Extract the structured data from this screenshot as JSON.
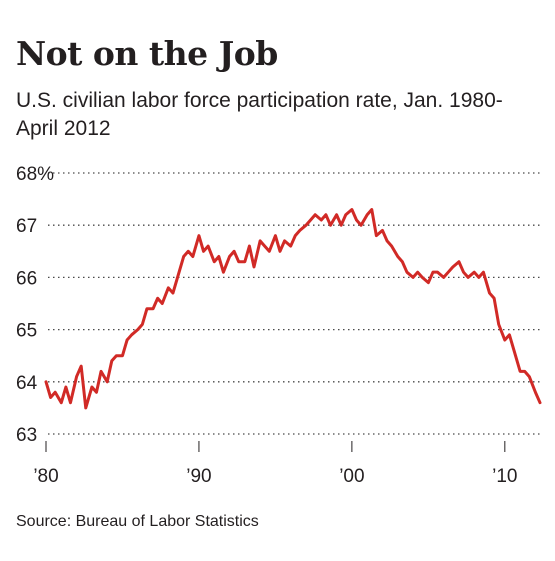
{
  "chart_data": {
    "type": "line",
    "title": "Not on the Job",
    "subtitle": "U.S. civilian labor force participation rate, Jan. 1980-April 2012",
    "source": "Source: Bureau of Labor Statistics",
    "x_range": [
      1980.0,
      2012.3
    ],
    "ylim": [
      63,
      68
    ],
    "y_ticks": [
      {
        "value": 68,
        "label": "68%"
      },
      {
        "value": 67,
        "label": "67"
      },
      {
        "value": 66,
        "label": "66"
      },
      {
        "value": 65,
        "label": "65"
      },
      {
        "value": 64,
        "label": "64"
      },
      {
        "value": 63,
        "label": "63"
      }
    ],
    "x_ticks": [
      {
        "value": 1980,
        "label": "’80"
      },
      {
        "value": 1990,
        "label": "’90"
      },
      {
        "value": 2000,
        "label": "’00"
      },
      {
        "value": 2010,
        "label": "’10"
      }
    ],
    "grid": "horizontal-dotted",
    "line_color": "#d12a26",
    "series": [
      {
        "points": [
          [
            1980.0,
            64.0
          ],
          [
            1980.3,
            63.7
          ],
          [
            1980.6,
            63.8
          ],
          [
            1981.0,
            63.6
          ],
          [
            1981.3,
            63.9
          ],
          [
            1981.6,
            63.6
          ],
          [
            1982.0,
            64.1
          ],
          [
            1982.3,
            64.3
          ],
          [
            1982.6,
            63.5
          ],
          [
            1983.0,
            63.9
          ],
          [
            1983.3,
            63.8
          ],
          [
            1983.6,
            64.2
          ],
          [
            1984.0,
            64.0
          ],
          [
            1984.3,
            64.4
          ],
          [
            1984.6,
            64.5
          ],
          [
            1985.0,
            64.5
          ],
          [
            1985.3,
            64.8
          ],
          [
            1985.6,
            64.9
          ],
          [
            1986.0,
            65.0
          ],
          [
            1986.3,
            65.1
          ],
          [
            1986.6,
            65.4
          ],
          [
            1987.0,
            65.4
          ],
          [
            1987.3,
            65.6
          ],
          [
            1987.6,
            65.5
          ],
          [
            1988.0,
            65.8
          ],
          [
            1988.3,
            65.7
          ],
          [
            1988.6,
            66.0
          ],
          [
            1989.0,
            66.4
          ],
          [
            1989.3,
            66.5
          ],
          [
            1989.6,
            66.4
          ],
          [
            1990.0,
            66.8
          ],
          [
            1990.3,
            66.5
          ],
          [
            1990.6,
            66.6
          ],
          [
            1991.0,
            66.3
          ],
          [
            1991.3,
            66.4
          ],
          [
            1991.6,
            66.1
          ],
          [
            1992.0,
            66.4
          ],
          [
            1992.3,
            66.5
          ],
          [
            1992.6,
            66.3
          ],
          [
            1993.0,
            66.3
          ],
          [
            1993.3,
            66.6
          ],
          [
            1993.6,
            66.2
          ],
          [
            1994.0,
            66.7
          ],
          [
            1994.3,
            66.6
          ],
          [
            1994.6,
            66.5
          ],
          [
            1995.0,
            66.8
          ],
          [
            1995.3,
            66.5
          ],
          [
            1995.6,
            66.7
          ],
          [
            1996.0,
            66.6
          ],
          [
            1996.3,
            66.8
          ],
          [
            1996.6,
            66.9
          ],
          [
            1997.0,
            67.0
          ],
          [
            1997.3,
            67.1
          ],
          [
            1997.6,
            67.2
          ],
          [
            1998.0,
            67.1
          ],
          [
            1998.3,
            67.2
          ],
          [
            1998.6,
            67.0
          ],
          [
            1999.0,
            67.2
          ],
          [
            1999.3,
            67.0
          ],
          [
            1999.6,
            67.2
          ],
          [
            2000.0,
            67.3
          ],
          [
            2000.3,
            67.1
          ],
          [
            2000.6,
            67.0
          ],
          [
            2001.0,
            67.2
          ],
          [
            2001.3,
            67.3
          ],
          [
            2001.6,
            66.8
          ],
          [
            2002.0,
            66.9
          ],
          [
            2002.3,
            66.7
          ],
          [
            2002.6,
            66.6
          ],
          [
            2003.0,
            66.4
          ],
          [
            2003.3,
            66.3
          ],
          [
            2003.6,
            66.1
          ],
          [
            2004.0,
            66.0
          ],
          [
            2004.3,
            66.1
          ],
          [
            2004.6,
            66.0
          ],
          [
            2005.0,
            65.9
          ],
          [
            2005.3,
            66.1
          ],
          [
            2005.6,
            66.1
          ],
          [
            2006.0,
            66.0
          ],
          [
            2006.3,
            66.1
          ],
          [
            2006.6,
            66.2
          ],
          [
            2007.0,
            66.3
          ],
          [
            2007.3,
            66.1
          ],
          [
            2007.6,
            66.0
          ],
          [
            2008.0,
            66.1
          ],
          [
            2008.3,
            66.0
          ],
          [
            2008.6,
            66.1
          ],
          [
            2009.0,
            65.7
          ],
          [
            2009.3,
            65.6
          ],
          [
            2009.6,
            65.1
          ],
          [
            2010.0,
            64.8
          ],
          [
            2010.3,
            64.9
          ],
          [
            2010.6,
            64.6
          ],
          [
            2011.0,
            64.2
          ],
          [
            2011.3,
            64.2
          ],
          [
            2011.6,
            64.1
          ],
          [
            2012.0,
            63.8
          ],
          [
            2012.3,
            63.6
          ]
        ]
      }
    ]
  }
}
